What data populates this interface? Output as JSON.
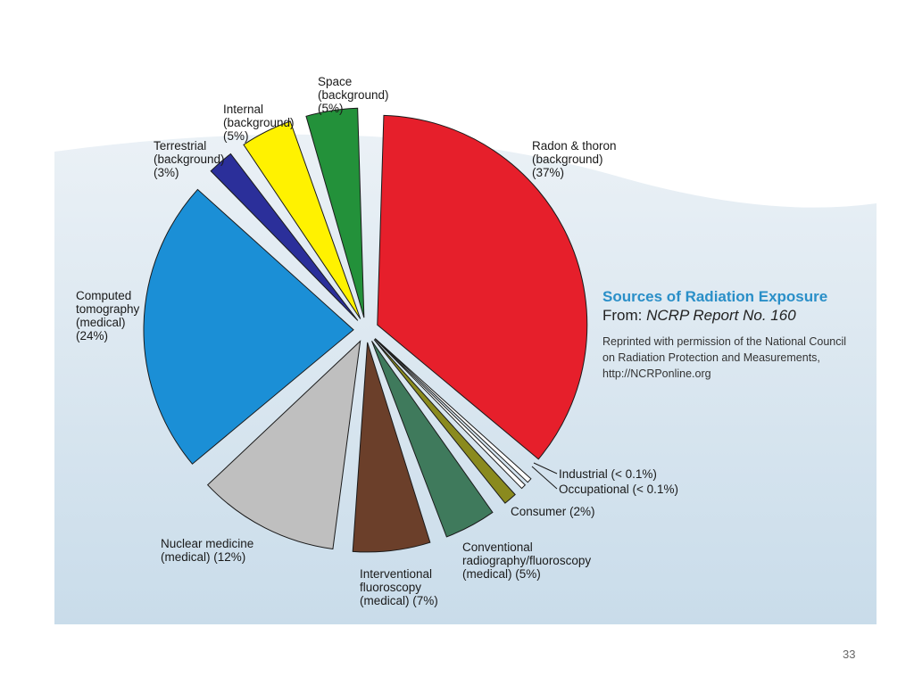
{
  "chart_data": {
    "type": "pie",
    "slices": [
      {
        "label_lines": [
          "Radon & thoron",
          "(background)",
          "(37%)"
        ],
        "value": 37,
        "color": "#e61f2b"
      },
      {
        "label_lines": [
          "Industrial (< 0.1%)"
        ],
        "value": 0.1,
        "color": "#ffffff"
      },
      {
        "label_lines": [
          "Occupational (< 0.1%)"
        ],
        "value": 0.1,
        "color": "#ffffff"
      },
      {
        "label_lines": [
          "Consumer (2%)"
        ],
        "value": 2,
        "color": "#8a8a1e"
      },
      {
        "label_lines": [
          "Conventional",
          "radiography/fluoroscopy",
          "(medical) (5%)"
        ],
        "value": 5,
        "color": "#3f7a5c"
      },
      {
        "label_lines": [
          "Interventional",
          "fluoroscopy",
          "(medical) (7%)"
        ],
        "value": 7,
        "color": "#6b3f2a"
      },
      {
        "label_lines": [
          "Nuclear medicine",
          "(medical) (12%)"
        ],
        "value": 12,
        "color": "#bfbfbf"
      },
      {
        "label_lines": [
          "Computed",
          "tomography",
          "(medical)",
          "(24%)"
        ],
        "value": 24,
        "color": "#1b8fd6"
      },
      {
        "label_lines": [
          "Terrestrial",
          "(background)",
          "(3%)"
        ],
        "value": 3,
        "color": "#2b2f9a"
      },
      {
        "label_lines": [
          "Internal",
          "(background)",
          "(5%)"
        ],
        "value": 5,
        "color": "#fff200"
      },
      {
        "label_lines": [
          "Space",
          "(background)",
          "(5%)"
        ],
        "value": 5,
        "color": "#23913a"
      }
    ]
  },
  "caption": {
    "title": "Sources of Radiation Exposure",
    "from_prefix": "From: ",
    "from_report": "NCRP Report No. 160",
    "note": "Reprinted with permission of the National Council on Radiation Protection and Measurements, http://NCRPonline.org"
  },
  "page_number": "33"
}
